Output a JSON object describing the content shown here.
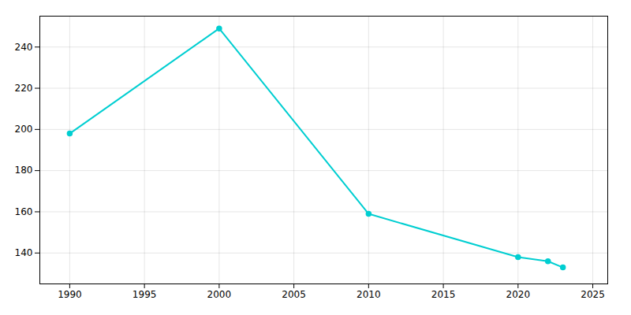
{
  "chart_data": {
    "type": "line",
    "x": [
      1990,
      2000,
      2010,
      2020,
      2022,
      2023
    ],
    "values": [
      198,
      249,
      159,
      138,
      136,
      133
    ],
    "color": "#00CED1",
    "marker": "circle",
    "xlim": [
      1988,
      2026
    ],
    "ylim": [
      125,
      255
    ],
    "xticks": [
      1990,
      1995,
      2000,
      2005,
      2010,
      2015,
      2020,
      2025
    ],
    "yticks": [
      140,
      160,
      180,
      200,
      220,
      240
    ],
    "grid": true
  }
}
